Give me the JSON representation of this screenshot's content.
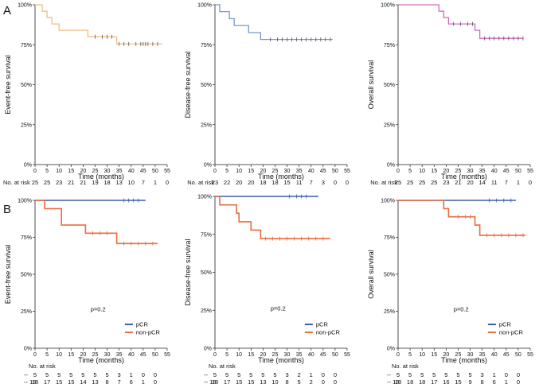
{
  "panel_letters": [
    "A",
    "B"
  ],
  "colors": {
    "efs": "#F2BE84",
    "dfs": "#7C95CF",
    "os": "#D06CC0",
    "pCR": "#3B5FA8",
    "non_pCR": "#EC6B3E",
    "censor_a": "#555555"
  },
  "chart_data": [
    {
      "type": "line",
      "kind": "kaplan-meier",
      "row": "A",
      "ylabel": "Event-free survival",
      "xlabel": "Time (months)",
      "xlim": [
        0,
        55
      ],
      "ylim": [
        0,
        1
      ],
      "x_ticks": [
        "0",
        "5",
        "10",
        "15",
        "20",
        "25",
        "30",
        "35",
        "40",
        "45",
        "50",
        "55"
      ],
      "y_ticks": [
        "0%",
        "25%",
        "50%",
        "75%",
        "100%"
      ],
      "risk_title": "No. at risk",
      "risk_rows": [
        {
          "label": "",
          "values": [
            "25",
            "25",
            "23",
            "21",
            "21",
            "19",
            "18",
            "13",
            "10",
            "7",
            "1",
            "0"
          ]
        }
      ],
      "series": [
        {
          "color_key": "efs",
          "steps": [
            [
              0,
              1.0
            ],
            [
              3,
              0.96
            ],
            [
              5,
              0.92
            ],
            [
              7,
              0.88
            ],
            [
              10,
              0.84
            ],
            [
              22,
              0.8
            ],
            [
              34,
              0.755
            ],
            [
              53,
              0.755
            ]
          ],
          "censors": [
            [
              25,
              0.8
            ],
            [
              28,
              0.8
            ],
            [
              30,
              0.8
            ],
            [
              32,
              0.8
            ],
            [
              35,
              0.755
            ],
            [
              37,
              0.755
            ],
            [
              39,
              0.755
            ],
            [
              42,
              0.755
            ],
            [
              44,
              0.755
            ],
            [
              45,
              0.755
            ],
            [
              46,
              0.755
            ],
            [
              47,
              0.755
            ],
            [
              49,
              0.755
            ],
            [
              51,
              0.755
            ]
          ]
        }
      ]
    },
    {
      "type": "line",
      "kind": "kaplan-meier",
      "row": "A",
      "ylabel": "Disease-free survival",
      "xlabel": "Time (months)",
      "xlim": [
        0,
        55
      ],
      "ylim": [
        0,
        1
      ],
      "x_ticks": [
        "0",
        "5",
        "10",
        "15",
        "20",
        "25",
        "30",
        "35",
        "40",
        "45",
        "50",
        "55"
      ],
      "y_ticks": [
        "0%",
        "25%",
        "50%",
        "75%",
        "100%"
      ],
      "risk_title": "No. at risk",
      "risk_rows": [
        {
          "label": "",
          "values": [
            "23",
            "22",
            "20",
            "20",
            "18",
            "18",
            "15",
            "11",
            "7",
            "3",
            "0",
            "0"
          ]
        }
      ],
      "series": [
        {
          "color_key": "dfs",
          "steps": [
            [
              0,
              1.0
            ],
            [
              2,
              0.957
            ],
            [
              6,
              0.913
            ],
            [
              8,
              0.87
            ],
            [
              14,
              0.826
            ],
            [
              19,
              0.783
            ],
            [
              49,
              0.783
            ]
          ],
          "censors": [
            [
              23,
              0.783
            ],
            [
              26,
              0.783
            ],
            [
              28,
              0.783
            ],
            [
              30,
              0.783
            ],
            [
              32,
              0.783
            ],
            [
              34,
              0.783
            ],
            [
              36,
              0.783
            ],
            [
              38,
              0.783
            ],
            [
              40,
              0.783
            ],
            [
              42,
              0.783
            ],
            [
              44,
              0.783
            ],
            [
              46,
              0.783
            ],
            [
              48,
              0.783
            ]
          ]
        }
      ]
    },
    {
      "type": "line",
      "kind": "kaplan-meier",
      "row": "A",
      "ylabel": "Overall survival",
      "xlabel": "Time (months)",
      "xlim": [
        0,
        55
      ],
      "ylim": [
        0,
        1
      ],
      "x_ticks": [
        "0",
        "5",
        "10",
        "15",
        "20",
        "25",
        "30",
        "35",
        "40",
        "45",
        "50",
        "55"
      ],
      "y_ticks": [
        "0%",
        "25%",
        "50%",
        "75%",
        "100%"
      ],
      "risk_title": "No. at risk",
      "risk_rows": [
        {
          "label": "",
          "values": [
            "25",
            "25",
            "25",
            "25",
            "23",
            "21",
            "20",
            "14",
            "11",
            "7",
            "1",
            "0"
          ]
        }
      ],
      "series": [
        {
          "color_key": "os",
          "steps": [
            [
              0,
              1.0
            ],
            [
              17,
              0.96
            ],
            [
              19,
              0.92
            ],
            [
              21,
              0.88
            ],
            [
              32,
              0.84
            ],
            [
              34,
              0.79
            ],
            [
              52,
              0.79
            ]
          ],
          "censors": [
            [
              23,
              0.88
            ],
            [
              26,
              0.88
            ],
            [
              29,
              0.88
            ],
            [
              31,
              0.88
            ],
            [
              36,
              0.79
            ],
            [
              38,
              0.79
            ],
            [
              40,
              0.79
            ],
            [
              42,
              0.79
            ],
            [
              44,
              0.79
            ],
            [
              46,
              0.79
            ],
            [
              48,
              0.79
            ],
            [
              50,
              0.79
            ],
            [
              52,
              0.79
            ]
          ]
        }
      ]
    },
    {
      "type": "line",
      "kind": "kaplan-meier",
      "row": "B",
      "ylabel": "Event-free survival",
      "xlabel": "Time (months)",
      "xlim": [
        0,
        55
      ],
      "ylim": [
        0,
        1
      ],
      "x_ticks": [
        "0",
        "5",
        "10",
        "15",
        "20",
        "25",
        "30",
        "35",
        "40",
        "45",
        "50",
        "55"
      ],
      "y_ticks": [
        "0%",
        "25%",
        "50%",
        "75%",
        "100%"
      ],
      "annotation": "p=0.2",
      "legend": [
        "pCR",
        "non-pCR"
      ],
      "risk_title": "No. at risk",
      "risk_rows": [
        {
          "label": "--",
          "values": [
            "5",
            "5",
            "5",
            "5",
            "5",
            "5",
            "5",
            "3",
            "1",
            "0",
            "0"
          ]
        },
        {
          "label": "-- 18",
          "values": [
            "18",
            "17",
            "15",
            "15",
            "14",
            "13",
            "8",
            "7",
            "6",
            "1",
            "0"
          ]
        }
      ],
      "series": [
        {
          "name": "pCR",
          "color_key": "pCR",
          "steps": [
            [
              0,
              1.0
            ],
            [
              46,
              1.0
            ]
          ],
          "censors": [
            [
              37,
              1.0
            ],
            [
              39,
              1.0
            ],
            [
              41,
              1.0
            ],
            [
              43,
              1.0
            ]
          ]
        },
        {
          "name": "non-pCR",
          "color_key": "non_pCR",
          "steps": [
            [
              0,
              1.0
            ],
            [
              4,
              0.944
            ],
            [
              11,
              0.833
            ],
            [
              21,
              0.778
            ],
            [
              34,
              0.708
            ],
            [
              51,
              0.708
            ]
          ],
          "censors": [
            [
              24,
              0.778
            ],
            [
              27,
              0.778
            ],
            [
              30,
              0.778
            ],
            [
              37,
              0.708
            ],
            [
              40,
              0.708
            ],
            [
              43,
              0.708
            ],
            [
              46,
              0.708
            ],
            [
              49,
              0.708
            ]
          ]
        }
      ]
    },
    {
      "type": "line",
      "kind": "kaplan-meier",
      "row": "B",
      "ylabel": "Disease-free survival",
      "xlabel": "Time (months)",
      "xlim": [
        0,
        55
      ],
      "ylim": [
        0,
        1
      ],
      "x_ticks": [
        "0",
        "5",
        "10",
        "15",
        "20",
        "25",
        "30",
        "35",
        "40",
        "45",
        "50",
        "55"
      ],
      "y_ticks": [
        "0%",
        "25%",
        "50%",
        "75%",
        "100%"
      ],
      "annotation": "p=0.2",
      "legend": [
        "pCR",
        "non-pCR"
      ],
      "risk_title": "No. at risk",
      "risk_rows": [
        {
          "label": "--",
          "values": [
            "5",
            "5",
            "5",
            "5",
            "5",
            "5",
            "3",
            "2",
            "1",
            "0",
            "0"
          ]
        },
        {
          "label": "-- 18",
          "values": [
            "18",
            "17",
            "15",
            "15",
            "13",
            "10",
            "8",
            "5",
            "2",
            "0",
            "0"
          ]
        }
      ],
      "series": [
        {
          "name": "pCR",
          "color_key": "pCR",
          "steps": [
            [
              0,
              1.0
            ],
            [
              43,
              1.0
            ]
          ],
          "censors": [
            [
              31,
              1.0
            ],
            [
              34,
              1.0
            ],
            [
              36,
              1.0
            ],
            [
              38,
              1.0
            ]
          ]
        },
        {
          "name": "non-pCR",
          "color_key": "non_pCR",
          "steps": [
            [
              0,
              1.0
            ],
            [
              2,
              0.944
            ],
            [
              9,
              0.889
            ],
            [
              10,
              0.833
            ],
            [
              15,
              0.778
            ],
            [
              19,
              0.722
            ],
            [
              48,
              0.722
            ]
          ],
          "censors": [
            [
              21,
              0.722
            ],
            [
              24,
              0.722
            ],
            [
              27,
              0.722
            ],
            [
              30,
              0.722
            ],
            [
              33,
              0.722
            ],
            [
              36,
              0.722
            ],
            [
              39,
              0.722
            ],
            [
              42,
              0.722
            ],
            [
              45,
              0.722
            ]
          ]
        }
      ]
    },
    {
      "type": "line",
      "kind": "kaplan-meier",
      "row": "B",
      "ylabel": "Overall survival",
      "xlabel": "Time (months)",
      "xlim": [
        0,
        55
      ],
      "ylim": [
        0,
        1
      ],
      "x_ticks": [
        "0",
        "5",
        "10",
        "15",
        "20",
        "25",
        "30",
        "35",
        "40",
        "45",
        "50",
        "55"
      ],
      "y_ticks": [
        "0%",
        "25%",
        "50%",
        "75%",
        "100%"
      ],
      "annotation": "p=0.2",
      "legend": [
        "pCR",
        "non-pCR"
      ],
      "risk_title": "No. at risk",
      "risk_rows": [
        {
          "label": "--",
          "values": [
            "5",
            "5",
            "5",
            "5",
            "5",
            "5",
            "5",
            "3",
            "1",
            "0",
            "0"
          ]
        },
        {
          "label": "-- 18",
          "values": [
            "18",
            "18",
            "18",
            "17",
            "16",
            "15",
            "9",
            "8",
            "6",
            "1",
            "0"
          ]
        }
      ],
      "series": [
        {
          "name": "pCR",
          "color_key": "pCR",
          "steps": [
            [
              0,
              1.0
            ],
            [
              49,
              1.0
            ]
          ],
          "censors": [
            [
              38,
              1.0
            ],
            [
              41,
              1.0
            ],
            [
              44,
              1.0
            ],
            [
              47,
              1.0
            ]
          ]
        },
        {
          "name": "non-pCR",
          "color_key": "non_pCR",
          "steps": [
            [
              0,
              1.0
            ],
            [
              19,
              0.944
            ],
            [
              21,
              0.889
            ],
            [
              32,
              0.833
            ],
            [
              34,
              0.764
            ],
            [
              53,
              0.764
            ]
          ],
          "censors": [
            [
              25,
              0.889
            ],
            [
              28,
              0.889
            ],
            [
              30,
              0.889
            ],
            [
              37,
              0.764
            ],
            [
              40,
              0.764
            ],
            [
              43,
              0.764
            ],
            [
              46,
              0.764
            ],
            [
              49,
              0.764
            ],
            [
              52,
              0.764
            ]
          ]
        }
      ]
    }
  ]
}
